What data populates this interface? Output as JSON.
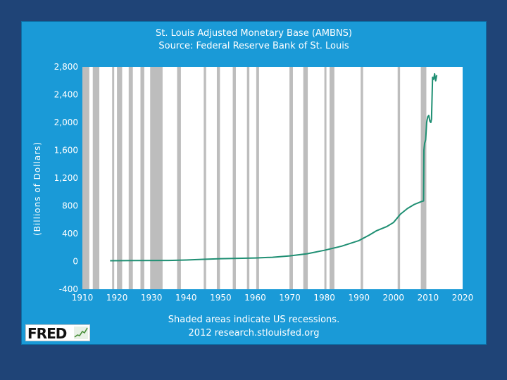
{
  "colors": {
    "background": "#1f4477",
    "panel": "#1a9ad7",
    "plot": "#ffffff",
    "line": "#1f8f73",
    "recession": "#bdbdbd"
  },
  "logo": {
    "text": "FRED",
    "icon": "fred-chart-icon"
  },
  "notes": {
    "line1": "Shaded areas indicate US recessions.",
    "line2": "2012 research.stlouisfed.org"
  },
  "chart_data": {
    "type": "line",
    "title": "St. Louis Adjusted Monetary Base (AMBNS)",
    "subtitle": "Source: Federal Reserve Bank of St. Louis",
    "ylabel": "(Billions of Dollars)",
    "xlabel": "",
    "xlim": [
      1910,
      2020
    ],
    "ylim": [
      -400,
      2800
    ],
    "xticks": [
      1910,
      1920,
      1930,
      1940,
      1950,
      1960,
      1970,
      1980,
      1990,
      2000,
      2010,
      2020
    ],
    "yticks": [
      -400,
      0,
      400,
      800,
      1200,
      1600,
      2000,
      2400,
      2800
    ],
    "ytick_labels": [
      "-400",
      "0",
      "400",
      "800",
      "1,200",
      "1,600",
      "2,000",
      "2,400",
      "2,800"
    ],
    "recessions": [
      [
        1910.0,
        1912.0
      ],
      [
        1913.0,
        1914.9
      ],
      [
        1918.6,
        1919.2
      ],
      [
        1920.0,
        1921.5
      ],
      [
        1923.4,
        1924.6
      ],
      [
        1926.8,
        1927.9
      ],
      [
        1929.6,
        1933.2
      ],
      [
        1937.4,
        1938.5
      ],
      [
        1945.1,
        1945.8
      ],
      [
        1948.9,
        1949.8
      ],
      [
        1953.5,
        1954.4
      ],
      [
        1957.6,
        1958.3
      ],
      [
        1960.3,
        1961.1
      ],
      [
        1969.9,
        1970.9
      ],
      [
        1973.9,
        1975.2
      ],
      [
        1980.0,
        1980.6
      ],
      [
        1981.5,
        1982.9
      ],
      [
        1990.5,
        1991.2
      ],
      [
        2001.2,
        2001.9
      ],
      [
        2007.9,
        2009.5
      ]
    ],
    "series": [
      {
        "name": "AMBNS",
        "x": [
          1918,
          1925,
          1935,
          1940,
          1945,
          1950,
          1955,
          1960,
          1965,
          1970,
          1975,
          1980,
          1985,
          1990,
          1993,
          1995,
          1998,
          2000,
          2002,
          2004,
          2006,
          2007,
          2008.0,
          2008.7,
          2008.8,
          2009.0,
          2009.3,
          2009.6,
          2009.9,
          2010.2,
          2010.5,
          2010.8,
          2011.0,
          2011.3,
          2011.6,
          2011.9,
          2012.2,
          2012.5
        ],
        "values": [
          10,
          12,
          14,
          20,
          30,
          40,
          45,
          50,
          60,
          80,
          110,
          160,
          220,
          300,
          380,
          440,
          500,
          560,
          680,
          760,
          820,
          840,
          860,
          870,
          1600,
          1700,
          1750,
          2000,
          2080,
          2100,
          2020,
          2000,
          2050,
          2650,
          2620,
          2700,
          2600,
          2680
        ]
      }
    ]
  }
}
